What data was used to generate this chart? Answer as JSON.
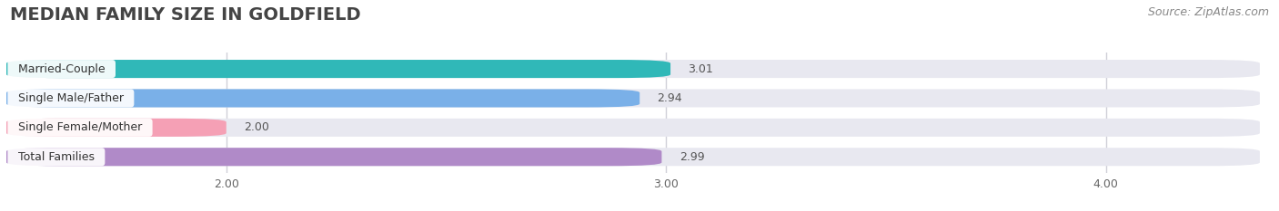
{
  "title": "MEDIAN FAMILY SIZE IN GOLDFIELD",
  "source": "Source: ZipAtlas.com",
  "categories": [
    "Married-Couple",
    "Single Male/Father",
    "Single Female/Mother",
    "Total Families"
  ],
  "values": [
    3.01,
    2.94,
    2.0,
    2.99
  ],
  "bar_colors": [
    "#30b8b8",
    "#7ab0e8",
    "#f5a0b5",
    "#b08ac8"
  ],
  "bar_bg_color": "#e8e8f0",
  "fig_bg_color": "#ffffff",
  "xlim_left": 1.5,
  "xlim_right": 4.35,
  "xticks": [
    2.0,
    3.0,
    4.0
  ],
  "xtick_labels": [
    "2.00",
    "3.00",
    "4.00"
  ],
  "title_color": "#444444",
  "title_fontsize": 14,
  "label_fontsize": 9,
  "value_fontsize": 9,
  "source_fontsize": 9,
  "source_color": "#888888",
  "bar_height": 0.62,
  "grid_color": "#d0d0d8",
  "grid_linewidth": 1.0
}
